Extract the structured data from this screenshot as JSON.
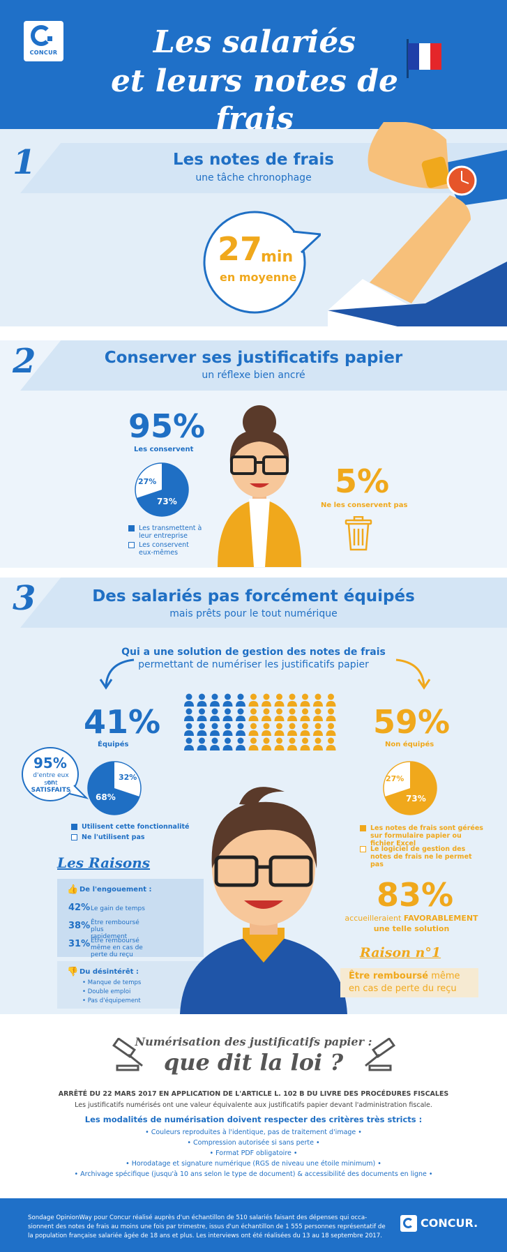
{
  "header": {
    "logo_text": "CONCUR",
    "title_line1": "Les salariés",
    "title_line2": "et leurs notes de frais"
  },
  "section1": {
    "number": "1",
    "title": "Les notes de frais",
    "subtitle": "une tâche chronophage",
    "time_value": "27",
    "time_unit": "min",
    "time_label": "en moyenne"
  },
  "section2": {
    "number": "2",
    "title": "Conserver ses justificatifs papier",
    "subtitle": "un réflexe bien ancré",
    "keep_percent": "95%",
    "keep_label": "Les conservent",
    "pie_small": "27%",
    "pie_large": "73%",
    "legend1": "Les transmettent à leur entreprise",
    "legend2": "Les conservent eux-mêmes",
    "not_keep_percent": "5%",
    "not_keep_label": "Ne les conservent pas"
  },
  "section3": {
    "number": "3",
    "title": "Des salariés pas forcément équipés",
    "subtitle": "mais prêts pour le tout numérique",
    "question_line1": "Qui a une solution de gestion des notes de frais",
    "question_line2": "permettant de numériser les justificatifs papier",
    "equipped_percent": "41%",
    "equipped_label": "Équipés",
    "not_equipped_percent": "59%",
    "not_equipped_label": "Non équipés",
    "bubble_percent": "95%",
    "bubble_line1": "d'entre eux en",
    "bubble_line2_pre": "sont ",
    "bubble_line2_bold": "SATISFAITS",
    "left_pie_small": "32%",
    "left_pie_large": "68%",
    "left_legend1": "Utilisent cette fonctionnalité",
    "left_legend2": "Ne l'utilisent pas",
    "right_pie_small": "27%",
    "right_pie_large": "73%",
    "right_legend1": "Les notes de frais sont gérées sur formulaire papier ou fichier Excel",
    "right_legend2": "Le logiciel de gestion des notes de frais ne le permet pas",
    "reasons_title": "Les Raisons",
    "enthusiasm_title": "De l'engouement :",
    "reason1_pct": "42%",
    "reason1_text": "Le gain de temps",
    "reason2_pct": "38%",
    "reason2_text": "Être remboursé plus rapidement",
    "reason3_pct": "31%",
    "reason3_text": "Être remboursé même en cas de perte du reçu",
    "disinterest_title": "Du désintérêt :",
    "dis1": "Manque de temps",
    "dis2": "Double emploi",
    "dis3": "Pas d'équipement",
    "favorable_percent": "83%",
    "favorable_line1_pre": "accueilleraient ",
    "favorable_line1_bold": "FAVORABLEMENT",
    "favorable_line2": "une telle solution",
    "raison1_title": "Raison n°1",
    "raison1_bold": "Être remboursé",
    "raison1_rest": " même",
    "raison1_line2": "en cas de perte du reçu",
    "icon_grid": {
      "total": 48,
      "blue": 20
    }
  },
  "law": {
    "title_line1": "Numérisation des justificatifs papier :",
    "title_line2": "que dit la loi ?",
    "decree": "ARRÊTÉ DU 22 MARS 2017 EN APPLICATION DE L'ARTICLE L. 102 B DU LIVRE DES PROCÉDURES FISCALES",
    "decree_sub": "Les justificatifs numérisés ont une valeur équivalente aux justificatifs papier devant l'administration fiscale.",
    "criteria_title": "Les modalités de numérisation doivent respecter des critères très stricts :",
    "criteria": [
      "• Couleurs reproduites à l'identique, pas de traitement d'image •",
      "• Compression autorisée si sans perte •",
      "• Format PDF obligatoire •",
      "• Horodatage et signature numérique (RGS de niveau une étoile minimum) •",
      "• Archivage spécifique (jusqu'à 10 ans selon le type de document) & accessibilité des documents en ligne •"
    ]
  },
  "footer": {
    "text_line1": "Sondage OpinionWay pour Concur réalisé auprès d'un échantillon de 510 salariés faisant des dépenses qui occa-",
    "text_line2": "sionnent des notes de frais au moins une fois par trimestre, issus d'un échantillon de 1 555 personnes représentatif de",
    "text_line3": "la population française salariée âgée de 18 ans et plus. Les interviews ont été réalisées du 13 au 18 septembre 2017.",
    "logo_text": "CONCUR."
  },
  "colors": {
    "blue": "#1f6fc4",
    "orange": "#f0a81c",
    "navy": "#1f70c8"
  }
}
